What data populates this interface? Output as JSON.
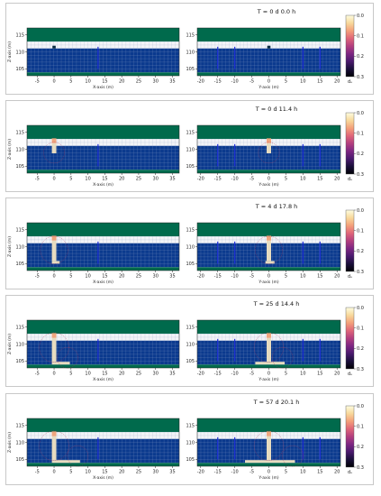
{
  "shared": {
    "x_axis_label": "X-axis (m)",
    "y_axis_label": "Y-axis (m)",
    "z_axis_label": "Z-axis (m)",
    "x_ticks": [
      "-5",
      "0",
      "5",
      "10",
      "15",
      "20",
      "25",
      "30",
      "35"
    ],
    "y_ticks": [
      "-20",
      "-15",
      "-10",
      "-5",
      "0",
      "5",
      "10",
      "15",
      "20"
    ],
    "z_ticks": [
      "115",
      "110",
      "105"
    ],
    "colorbar_ticks": [
      "0.0",
      "0.1",
      "0.2",
      "0.3"
    ],
    "colorbar_label": "dₛ",
    "colors": {
      "ground_green": "#006a4c",
      "unsaturated": "#f3f4f7",
      "aquifer_blue": "#0b3a8e",
      "grid_line": "#8ea2c8",
      "well": "#1f2fd8",
      "pumping_zone": "#e7dcc0",
      "hot_zone": "#f0a67e",
      "cone_circle": "#b83050"
    },
    "colorbar_scale": [
      "#fdfce0",
      "#f8d99b",
      "#f4a07a",
      "#e06679",
      "#b33e7e",
      "#7e2682",
      "#4a1a6e",
      "#1a0f3a",
      "#000004"
    ]
  },
  "panels": [
    {
      "time_label": "T = 0 d  0.0 h",
      "drawdown_depth_m": 0,
      "lateral_extent_m": 0
    },
    {
      "time_label": "T = 0 d 11.4 h",
      "drawdown_depth_m": 3,
      "lateral_extent_m": 0
    },
    {
      "time_label": "T = 4 d 17.8 h",
      "drawdown_depth_m": 6,
      "lateral_extent_m": 1
    },
    {
      "time_label": "T = 25 d 14.4 h",
      "drawdown_depth_m": 7,
      "lateral_extent_m": 4
    },
    {
      "time_label": "T = 57 d 20.1 h",
      "drawdown_depth_m": 7,
      "lateral_extent_m": 7
    }
  ]
}
